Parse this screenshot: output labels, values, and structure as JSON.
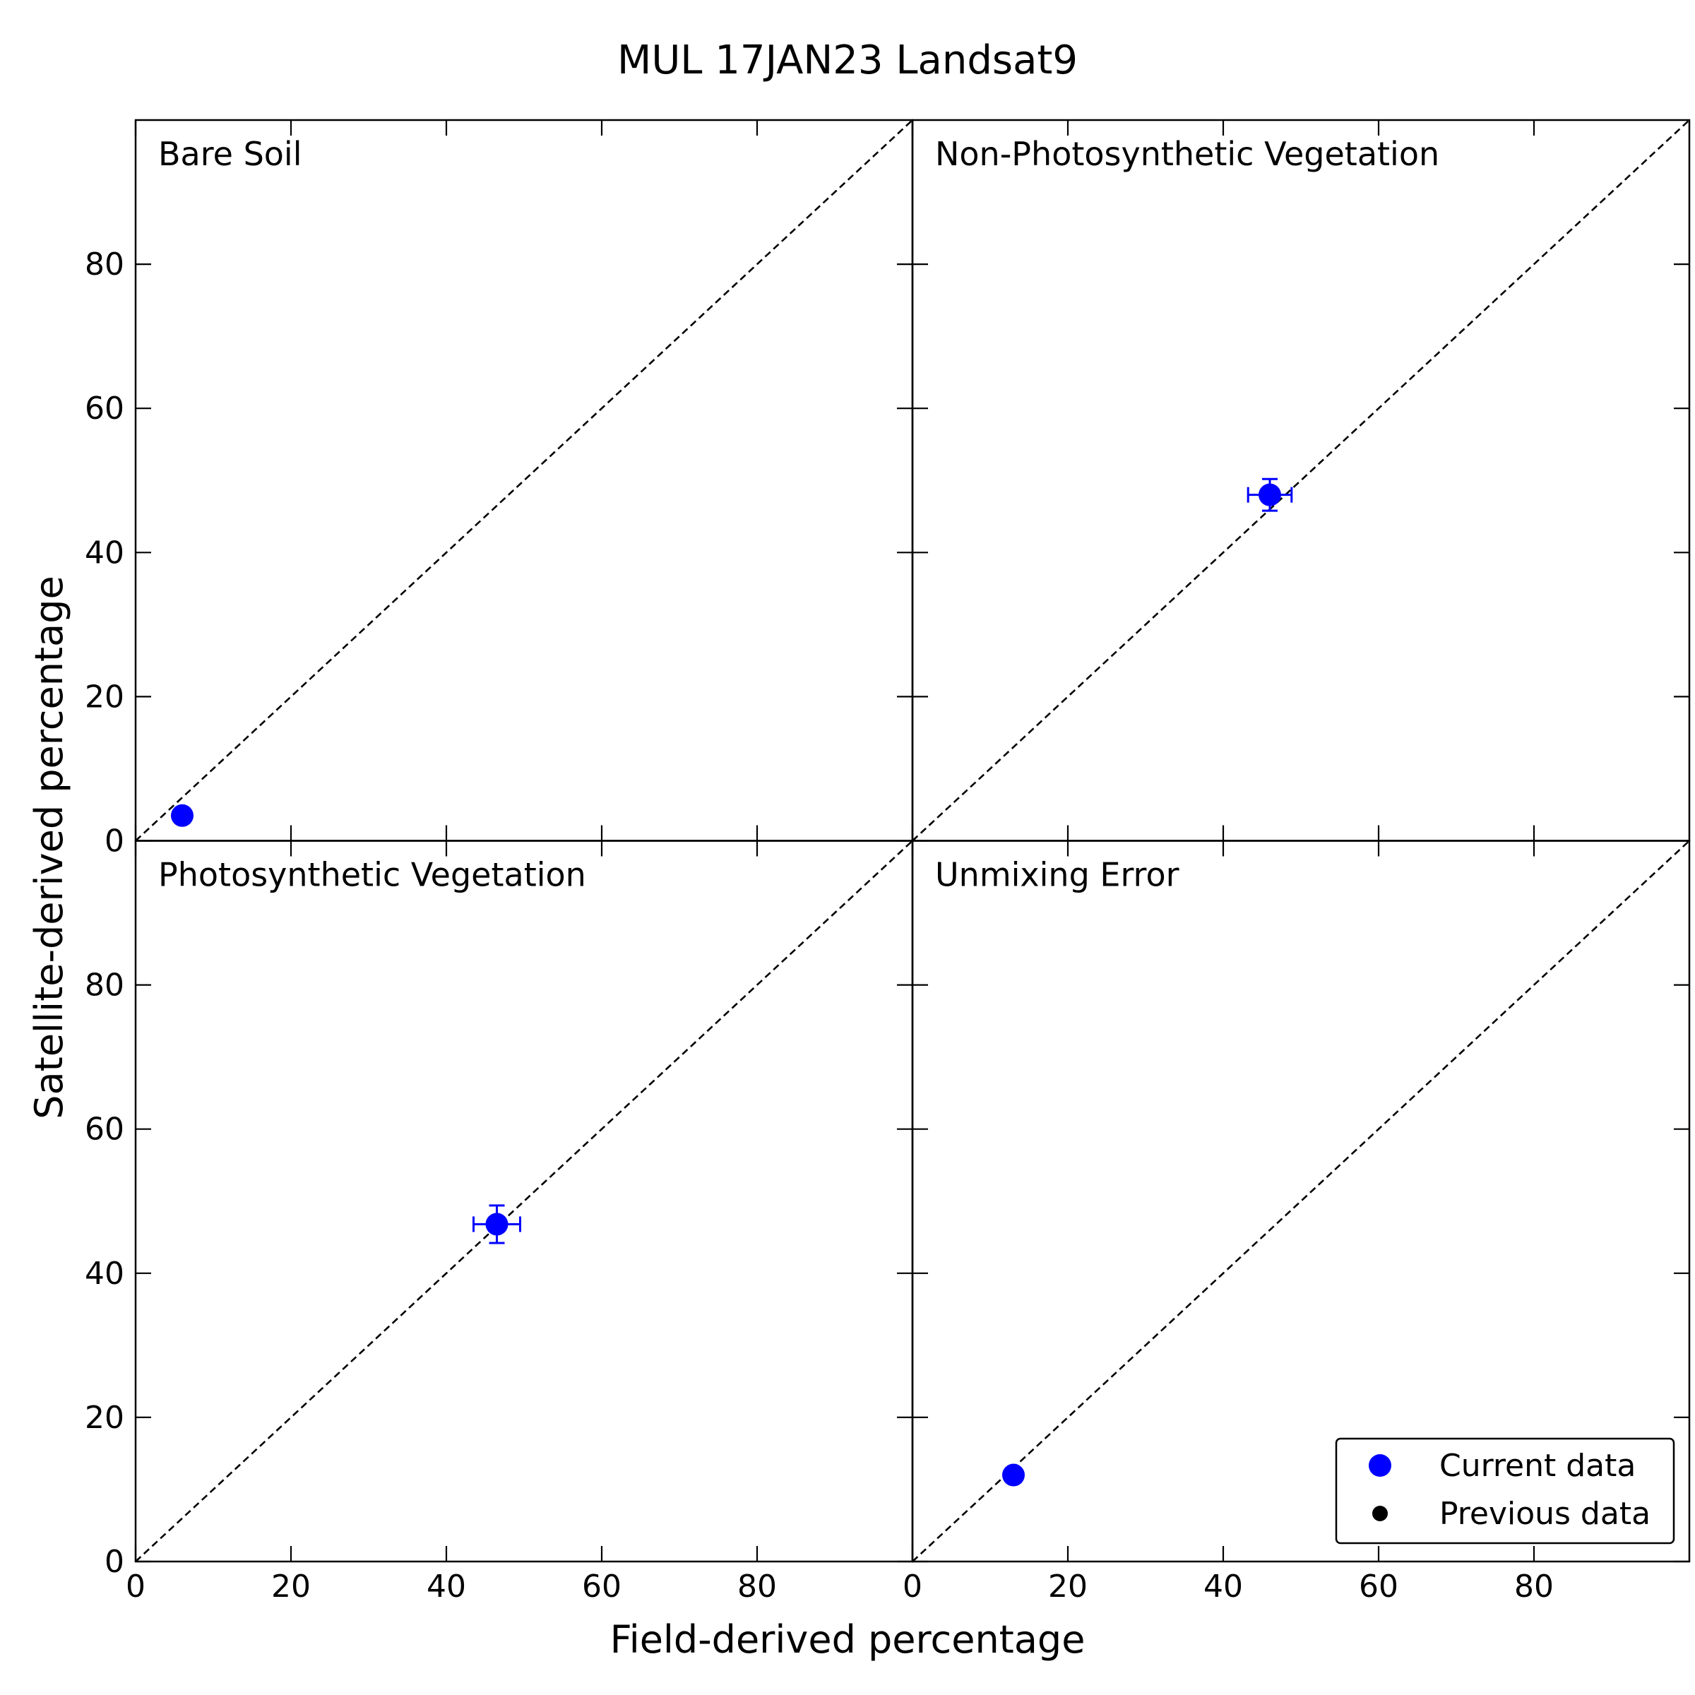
{
  "chart_data": {
    "type": "scatter",
    "title": "MUL  17JAN23  Landsat9",
    "xlabel": "Field-derived percentage",
    "ylabel": "Satellite-derived percentage",
    "xlim": [
      0,
      100
    ],
    "ylim": [
      0,
      100
    ],
    "ticks": [
      0,
      20,
      40,
      60,
      80
    ],
    "tick_labels": [
      "0",
      "20",
      "40",
      "60",
      "80"
    ],
    "current_color": "#0000ff",
    "previous_color": "#000000",
    "panels": [
      {
        "label": "Bare Soil",
        "points": [
          {
            "x": 6.0,
            "y": 3.5,
            "xerr": 0,
            "yerr": 0
          }
        ]
      },
      {
        "label": "Non-Photosynthetic Vegetation",
        "points": [
          {
            "x": 46.0,
            "y": 48.0,
            "xerr": 2.8,
            "yerr": 2.2
          }
        ]
      },
      {
        "label": "Photosynthetic Vegetation",
        "points": [
          {
            "x": 46.5,
            "y": 46.8,
            "xerr": 3.0,
            "yerr": 2.6
          }
        ]
      },
      {
        "label": "Unmixing Error",
        "points": [
          {
            "x": 13.0,
            "y": 12.0,
            "xerr": 0,
            "yerr": 0
          }
        ]
      }
    ],
    "legend": {
      "position": "lower-right",
      "entries": [
        {
          "label": "Current data",
          "marker": "large-circle",
          "color": "#0000ff"
        },
        {
          "label": "Previous data",
          "marker": "small-circle",
          "color": "#000000"
        }
      ]
    }
  }
}
